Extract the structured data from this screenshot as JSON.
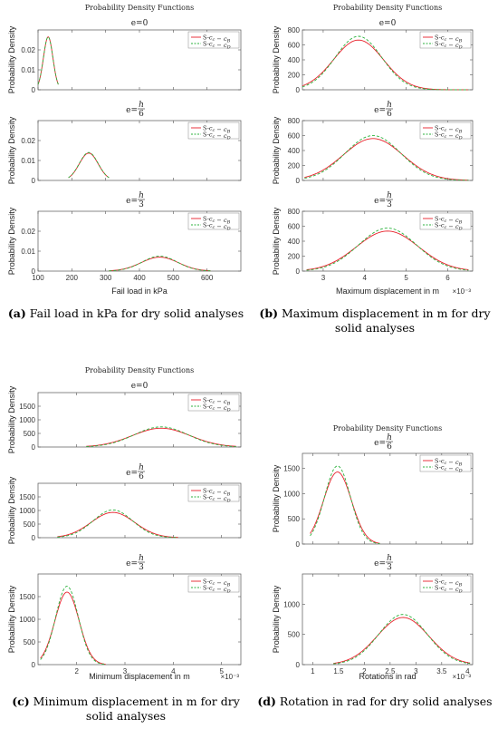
{
  "chart_data": [
    {
      "id": "a",
      "type": "line",
      "title": "Probability Density Functions",
      "xlabel": "Fail load in kPa",
      "x_exponent": "",
      "xlim": [
        100,
        700
      ],
      "xticks": [
        100,
        200,
        300,
        400,
        500,
        600
      ],
      "has_x_ticklabels": [
        false,
        false,
        true
      ],
      "ylabel": "Probability Density",
      "legend": {
        "position": "top-right",
        "entries": [
          "S-c_c − c_B",
          "S-c_c − c_D"
        ]
      },
      "series_style": [
        {
          "color": "#e8202a",
          "dash": ""
        },
        {
          "color": "#2bb23c",
          "dash": "3,2"
        }
      ],
      "panels": [
        {
          "label_e": "e=0",
          "label_frac_num": "",
          "label_frac_den": "",
          "ylim": [
            0,
            0.03
          ],
          "yticks": [
            0,
            0.01,
            0.02
          ],
          "ytick_labels": [
            "0",
            "0.01",
            "0.02"
          ],
          "series": [
            {
              "name": "S-c_c − c_B",
              "mu": 130,
              "sigma": 14,
              "peak": 0.0265,
              "range": [
                100,
                160
              ]
            },
            {
              "name": "S-c_c − c_D",
              "mu": 130,
              "sigma": 14,
              "peak": 0.0265,
              "range": [
                100,
                160
              ]
            }
          ]
        },
        {
          "label_e": "e=",
          "label_frac_num": "h",
          "label_frac_den": "6",
          "ylim": [
            0,
            0.03
          ],
          "yticks": [
            0,
            0.01,
            0.02
          ],
          "ytick_labels": [
            "0",
            "0.01",
            "0.02"
          ],
          "series": [
            {
              "name": "S-c_c − c_B",
              "mu": 250,
              "sigma": 28,
              "peak": 0.0137,
              "range": [
                190,
                310
              ]
            },
            {
              "name": "S-c_c − c_D",
              "mu": 250,
              "sigma": 28,
              "peak": 0.014,
              "range": [
                190,
                310
              ]
            }
          ]
        },
        {
          "label_e": "e=",
          "label_frac_num": "h",
          "label_frac_den": "3",
          "ylim": [
            0,
            0.03
          ],
          "yticks": [
            0,
            0.01,
            0.02
          ],
          "ytick_labels": [
            "0",
            "0.01",
            "0.02"
          ],
          "series": [
            {
              "name": "S-c_c − c_B",
              "mu": 460,
              "sigma": 55,
              "peak": 0.007,
              "range": [
                310,
                610
              ]
            },
            {
              "name": "S-c_c − c_D",
              "mu": 460,
              "sigma": 52,
              "peak": 0.0075,
              "range": [
                310,
                610
              ]
            }
          ]
        }
      ]
    },
    {
      "id": "b",
      "type": "line",
      "title": "Probability Density Functions",
      "xlabel": "Maximum displacement in m",
      "x_exponent": "×10⁻³",
      "xlim": [
        2.5,
        6.6
      ],
      "xticks": [
        3,
        4,
        5,
        6
      ],
      "has_x_ticklabels": [
        false,
        false,
        true
      ],
      "ylabel": "Probability Density",
      "legend": {
        "position": "top-right",
        "entries": [
          "S-c_c − c_B",
          "S-c_c − c_D"
        ]
      },
      "series_style": [
        {
          "color": "#e8202a",
          "dash": ""
        },
        {
          "color": "#2bb23c",
          "dash": "3,2"
        }
      ],
      "panels": [
        {
          "label_e": "e=0",
          "label_frac_num": "",
          "label_frac_den": "",
          "ylim": [
            0,
            800
          ],
          "yticks": [
            0,
            200,
            400,
            600,
            800
          ],
          "ytick_labels": [
            "0",
            "200",
            "400",
            "600",
            "800"
          ],
          "series": [
            {
              "name": "S-c_c − c_B",
              "mu": 3.85,
              "sigma": 0.6,
              "peak": 665,
              "range": [
                2.5,
                6.5
              ]
            },
            {
              "name": "S-c_c − c_D",
              "mu": 3.85,
              "sigma": 0.56,
              "peak": 715,
              "range": [
                2.5,
                6.5
              ]
            }
          ]
        },
        {
          "label_e": "e=",
          "label_frac_num": "h",
          "label_frac_den": "6",
          "ylim": [
            0,
            800
          ],
          "yticks": [
            0,
            200,
            400,
            600,
            800
          ],
          "ytick_labels": [
            "0",
            "200",
            "400",
            "600",
            "800"
          ],
          "series": [
            {
              "name": "S-c_c − c_B",
              "mu": 4.2,
              "sigma": 0.72,
              "peak": 560,
              "range": [
                2.55,
                6.5
              ]
            },
            {
              "name": "S-c_c − c_D",
              "mu": 4.2,
              "sigma": 0.67,
              "peak": 600,
              "range": [
                2.55,
                6.5
              ]
            }
          ]
        },
        {
          "label_e": "e=",
          "label_frac_num": "h",
          "label_frac_den": "3",
          "ylim": [
            0,
            800
          ],
          "yticks": [
            0,
            200,
            400,
            600,
            800
          ],
          "ytick_labels": [
            "0",
            "200",
            "400",
            "600",
            "800"
          ],
          "series": [
            {
              "name": "S-c_c − c_B",
              "mu": 4.55,
              "sigma": 0.75,
              "peak": 535,
              "range": [
                2.6,
                6.5
              ]
            },
            {
              "name": "S-c_c − c_D",
              "mu": 4.55,
              "sigma": 0.7,
              "peak": 575,
              "range": [
                2.6,
                6.5
              ]
            }
          ]
        }
      ]
    },
    {
      "id": "c",
      "type": "line",
      "title": "Probability Density Functions",
      "xlabel": "Minimum displacement in m",
      "x_exponent": "×10⁻³",
      "xlim": [
        1.2,
        5.4
      ],
      "xticks": [
        2,
        3,
        4,
        5
      ],
      "has_x_ticklabels": [
        false,
        false,
        true
      ],
      "ylabel": "Probability Density",
      "legend": {
        "position": "top-right",
        "entries": [
          "S-c_c − c_B",
          "S-c_c − c_D"
        ]
      },
      "series_style": [
        {
          "color": "#e8202a",
          "dash": ""
        },
        {
          "color": "#2bb23c",
          "dash": "3,2"
        }
      ],
      "panels": [
        {
          "label_e": "e=0",
          "label_frac_num": "",
          "label_frac_den": "",
          "ylim": [
            0,
            2000
          ],
          "yticks": [
            0,
            500,
            1000,
            1500
          ],
          "ytick_labels": [
            "0",
            "500",
            "1000",
            "1500"
          ],
          "series": [
            {
              "name": "S-c_c − c_B",
              "mu": 3.75,
              "sigma": 0.6,
              "peak": 690,
              "range": [
                2.2,
                5.3
              ]
            },
            {
              "name": "S-c_c − c_D",
              "mu": 3.75,
              "sigma": 0.56,
              "peak": 740,
              "range": [
                2.2,
                5.3
              ]
            }
          ]
        },
        {
          "label_e": "e=",
          "label_frac_num": "h",
          "label_frac_den": "6",
          "ylim": [
            0,
            2000
          ],
          "yticks": [
            0,
            500,
            1000,
            1500
          ],
          "ytick_labels": [
            "0",
            "500",
            "1000",
            "1500"
          ],
          "series": [
            {
              "name": "S-c_c − c_B",
              "mu": 2.75,
              "sigma": 0.45,
              "peak": 930,
              "range": [
                1.6,
                4.1
              ]
            },
            {
              "name": "S-c_c − c_D",
              "mu": 2.75,
              "sigma": 0.41,
              "peak": 1020,
              "range": [
                1.6,
                4.1
              ]
            }
          ]
        },
        {
          "label_e": "e=",
          "label_frac_num": "h",
          "label_frac_den": "3",
          "ylim": [
            0,
            2000
          ],
          "yticks": [
            0,
            500,
            1000,
            1500
          ],
          "ytick_labels": [
            "0",
            "500",
            "1000",
            "1500"
          ],
          "series": [
            {
              "name": "S-c_c − c_B",
              "mu": 1.8,
              "sigma": 0.25,
              "peak": 1600,
              "range": [
                1.25,
                2.6
              ]
            },
            {
              "name": "S-c_c − c_D",
              "mu": 1.8,
              "sigma": 0.235,
              "peak": 1730,
              "range": [
                1.25,
                2.6
              ]
            }
          ]
        }
      ]
    },
    {
      "id": "d",
      "type": "line",
      "title": "Probability Density Functions",
      "xlabel": "Rotations in rad",
      "x_exponent": "×10⁻³",
      "xlim": [
        0.8,
        4.1
      ],
      "xticks": [
        1,
        1.5,
        2,
        2.5,
        3,
        3.5,
        4
      ],
      "has_x_ticklabels": [
        false,
        true
      ],
      "ylabel": "Probability Density",
      "legend": {
        "position": "top-right",
        "entries": [
          "S-c_c − c_B",
          "S-c_c − c_D"
        ]
      },
      "series_style": [
        {
          "color": "#e8202a",
          "dash": ""
        },
        {
          "color": "#2bb23c",
          "dash": "3,2"
        }
      ],
      "panels": [
        {
          "label_e": "e=",
          "label_frac_num": "h",
          "label_frac_den": "6",
          "ylim": [
            0,
            1800
          ],
          "yticks": [
            0,
            500,
            1000,
            1500
          ],
          "ytick_labels": [
            "0",
            "500",
            "1000",
            "1500"
          ],
          "series": [
            {
              "name": "S-c_c − c_B",
              "mu": 1.48,
              "sigma": 0.27,
              "peak": 1430,
              "range": [
                0.95,
                2.3
              ]
            },
            {
              "name": "S-c_c − c_D",
              "mu": 1.48,
              "sigma": 0.25,
              "peak": 1550,
              "range": [
                0.95,
                2.3
              ]
            }
          ]
        },
        {
          "label_e": "e=",
          "label_frac_num": "h",
          "label_frac_den": "3",
          "ylim": [
            0,
            1500
          ],
          "yticks": [
            0,
            500,
            1000
          ],
          "ytick_labels": [
            "0",
            "500",
            "1000"
          ],
          "series": [
            {
              "name": "S-c_c − c_B",
              "mu": 2.75,
              "sigma": 0.5,
              "peak": 780,
              "range": [
                1.4,
                4.05
              ]
            },
            {
              "name": "S-c_c − c_D",
              "mu": 2.75,
              "sigma": 0.47,
              "peak": 830,
              "range": [
                1.4,
                4.05
              ]
            }
          ]
        }
      ]
    }
  ],
  "captions": [
    {
      "label": "(a)",
      "text": " Fail load in kPa for dry solid analyses"
    },
    {
      "label": "(b)",
      "text": " Maximum displacement in m for dry solid analyses"
    },
    {
      "label": "(c)",
      "text": " Minimum displacement in m for dry solid analyses"
    },
    {
      "label": "(d)",
      "text": " Rotation in rad for dry solid analyses"
    }
  ]
}
